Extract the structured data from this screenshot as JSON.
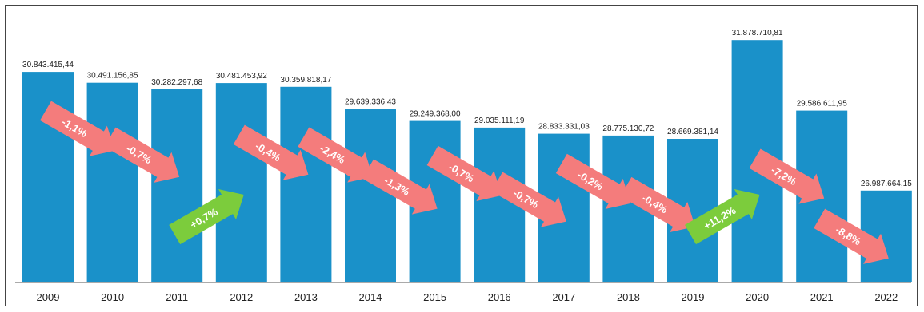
{
  "chart_data": {
    "type": "bar",
    "categories": [
      "2009",
      "2010",
      "2011",
      "2012",
      "2013",
      "2014",
      "2015",
      "2016",
      "2017",
      "2018",
      "2019",
      "2020",
      "2021",
      "2022"
    ],
    "values": [
      30843415.44,
      30491156.85,
      30282297.68,
      30481453.92,
      30359818.17,
      29639336.43,
      29249368.0,
      29035111.19,
      28833331.03,
      28775130.72,
      28669381.14,
      31878710.81,
      29586611.95,
      26987664.15
    ],
    "value_labels": [
      "30.843.415,44",
      "30.491.156,85",
      "30.282.297,68",
      "30.481.453,92",
      "30.359.818,17",
      "29.639.336,43",
      "29.249.368,00",
      "29.035.111,19",
      "28.833.331,03",
      "28.775.130,72",
      "28.669.381,14",
      "31.878.710,81",
      "29.586.611,95",
      "26.987.664,15"
    ],
    "changes": [
      "-1,1%",
      "-0,7%",
      "+0,7%",
      "-0,4%",
      "-2,4%",
      "-1,3%",
      "-0,7%",
      "-0,7%",
      "-0,2%",
      "-0,4%",
      "+11,2%",
      "-7,2%",
      "-8,8%"
    ],
    "change_direction": [
      "down",
      "down",
      "up",
      "down",
      "down",
      "down",
      "down",
      "down",
      "down",
      "down",
      "up",
      "down",
      "down"
    ],
    "ylim": [
      24000000,
      33000000
    ],
    "grid": false,
    "legend": "none",
    "colors": {
      "bar": "#1a91c9",
      "down_arrow": "#f47c7c",
      "up_arrow": "#7ccc3c"
    }
  }
}
